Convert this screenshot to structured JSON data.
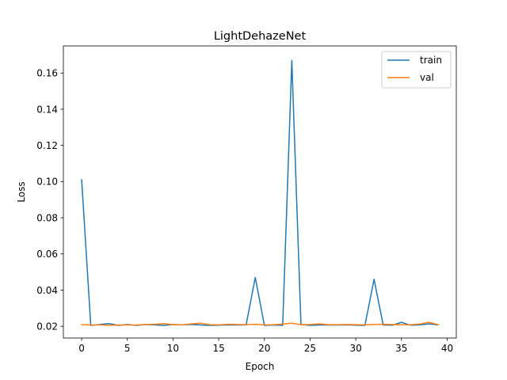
{
  "chart_data": {
    "type": "line",
    "title": "LightDehazeNet",
    "xlabel": "Epoch",
    "ylabel": "Loss",
    "xlim": [
      -2,
      41
    ],
    "ylim": [
      0.0135,
      0.175
    ],
    "xticks": [
      0,
      5,
      10,
      15,
      20,
      25,
      30,
      35,
      40
    ],
    "yticks": [
      0.02,
      0.04,
      0.06,
      0.08,
      0.1,
      0.12,
      0.14,
      0.16
    ],
    "ytick_labels": [
      "0.02",
      "0.04",
      "0.06",
      "0.08",
      "0.10",
      "0.12",
      "0.14",
      "0.16"
    ],
    "grid": false,
    "legend_position": "top-right",
    "x": [
      0,
      1,
      2,
      3,
      4,
      5,
      6,
      7,
      8,
      9,
      10,
      11,
      12,
      13,
      14,
      15,
      16,
      17,
      18,
      19,
      20,
      21,
      22,
      23,
      24,
      25,
      26,
      27,
      28,
      29,
      30,
      31,
      32,
      33,
      34,
      35,
      36,
      37,
      38,
      39
    ],
    "series": [
      {
        "name": "train",
        "color": "#1f77b4",
        "values": [
          0.101,
          0.0205,
          0.021,
          0.0215,
          0.0205,
          0.021,
          0.0205,
          0.021,
          0.0208,
          0.0205,
          0.021,
          0.0208,
          0.021,
          0.0207,
          0.0205,
          0.0206,
          0.0208,
          0.0207,
          0.0208,
          0.047,
          0.0205,
          0.0207,
          0.0205,
          0.167,
          0.021,
          0.0205,
          0.0207,
          0.0208,
          0.0207,
          0.0208,
          0.0206,
          0.0205,
          0.046,
          0.0207,
          0.0206,
          0.0222,
          0.0206,
          0.0208,
          0.0213,
          0.0208
        ]
      },
      {
        "name": "val",
        "color": "#ff7f0e",
        "values": [
          0.0209,
          0.0207,
          0.0208,
          0.0205,
          0.0207,
          0.0207,
          0.0207,
          0.021,
          0.0211,
          0.0215,
          0.0209,
          0.0208,
          0.0213,
          0.0217,
          0.0209,
          0.0208,
          0.0211,
          0.021,
          0.0209,
          0.0211,
          0.0208,
          0.0209,
          0.0212,
          0.0217,
          0.0209,
          0.021,
          0.0214,
          0.0209,
          0.0209,
          0.021,
          0.0209,
          0.0208,
          0.021,
          0.0211,
          0.021,
          0.0208,
          0.0209,
          0.0212,
          0.0222,
          0.0209
        ]
      }
    ]
  }
}
